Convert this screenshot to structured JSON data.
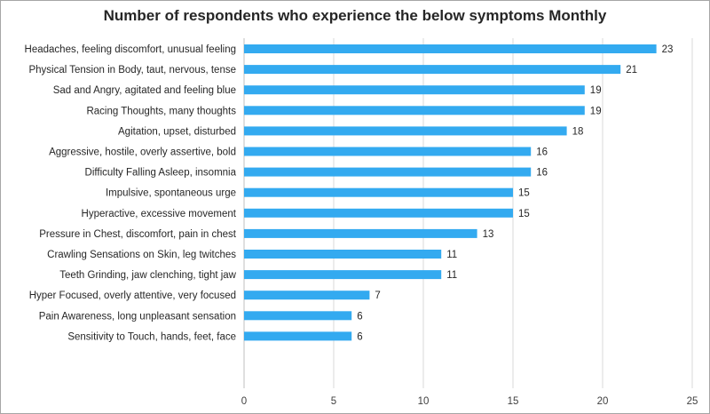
{
  "chart_data": {
    "type": "bar",
    "orientation": "horizontal",
    "title": "Number of respondents who experience the below symptoms Monthly",
    "categories": [
      "Headaches, feeling discomfort, unusual feeling",
      "Physical Tension in Body, taut, nervous, tense",
      "Sad and Angry, agitated and feeling blue",
      "Racing Thoughts, many thoughts",
      "Agitation, upset, disturbed",
      "Aggressive, hostile, overly assertive, bold",
      "Difficulty Falling Asleep, insomnia",
      "Impulsive, spontaneous urge",
      "Hyperactive, excessive movement",
      "Pressure in Chest, discomfort, pain in chest",
      "Crawling Sensations on Skin, leg twitches",
      "Teeth Grinding, jaw clenching, tight jaw",
      "Hyper Focused, overly attentive, very focused",
      "Pain Awareness, long unpleasant sensation",
      "Sensitivity to Touch, hands, feet, face"
    ],
    "values": [
      23,
      21,
      19,
      19,
      18,
      16,
      16,
      15,
      15,
      13,
      11,
      11,
      7,
      6,
      6
    ],
    "xlim": [
      0,
      25
    ],
    "xticks": [
      0,
      5,
      10,
      15,
      20,
      25
    ],
    "xlabel": "",
    "ylabel": "",
    "grid": true,
    "data_labels": true,
    "bar_color": "#33aaf0",
    "grid_color": "#d9d9d9"
  }
}
